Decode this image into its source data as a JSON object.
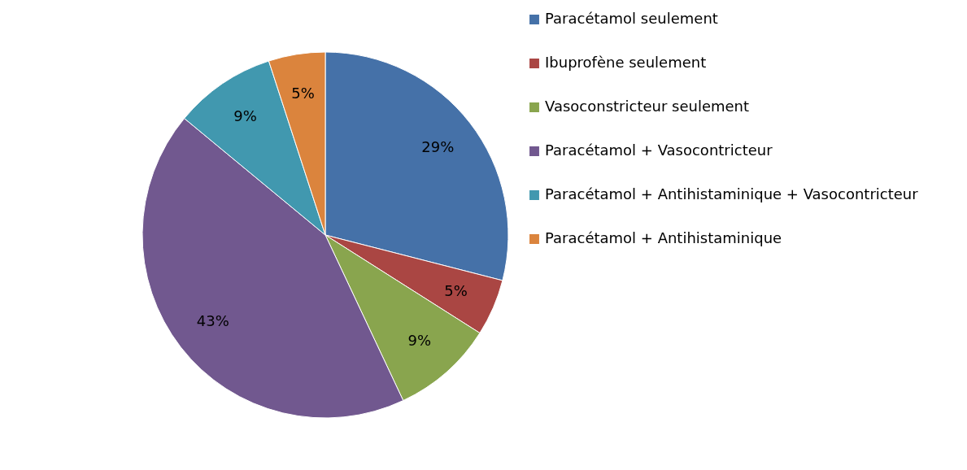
{
  "chart_data": {
    "type": "pie",
    "categories": [
      "Paracétamol seulement",
      "Ibuprofène seulement",
      "Vasoconstricteur seulement",
      "Paracétamol +  Vasocontricteur",
      "Paracétamol + Antihistaminique + Vasocontricteur",
      "Paracétamol + Antihistaminique"
    ],
    "values": [
      29,
      5,
      9,
      43,
      9,
      5
    ],
    "value_labels": [
      "29%",
      "5%",
      "9%",
      "43%",
      "9%",
      "5%"
    ],
    "colors": [
      "#4571a8",
      "#aa4643",
      "#89a54e",
      "#71588f",
      "#4198af",
      "#db843d"
    ],
    "legend": "right"
  }
}
